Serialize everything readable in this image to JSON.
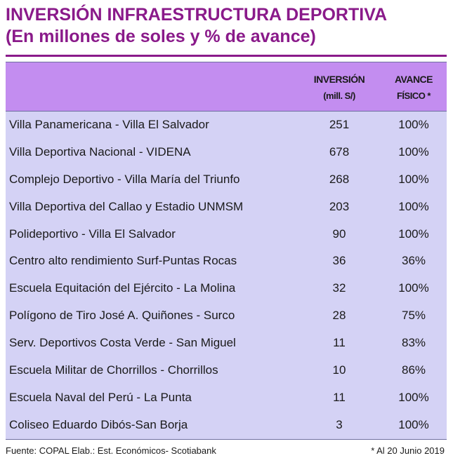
{
  "title": {
    "line1": "INVERSIÓN INFRAESTRUCTURA DEPORTIVA",
    "line2": "(En millones de soles y % de avance)"
  },
  "colors": {
    "title": "#8a1a8a",
    "header_bg": "#c38df0",
    "table_bg": "#d4d2f5"
  },
  "table": {
    "headers": {
      "inversion": "INVERSIÓN",
      "inversion_unit": "(mill. S/)",
      "avance": "AVANCE",
      "avance_sub": "FÍSICO *"
    },
    "rows": [
      {
        "name": "Villa Panamericana - Villa El Salvador",
        "inversion": "251",
        "avance": "100%"
      },
      {
        "name": "Villa Deportiva Nacional - VIDENA",
        "inversion": "678",
        "avance": "100%"
      },
      {
        "name": "Complejo Deportivo - Villa María del Triunfo",
        "inversion": "268",
        "avance": "100%"
      },
      {
        "name": "Villa Deportiva del Callao y Estadio UNMSM",
        "inversion": "203",
        "avance": "100%"
      },
      {
        "name": "Polideportivo - Villa El Salvador",
        "inversion": "90",
        "avance": "100%"
      },
      {
        "name": "Centro alto rendimiento Surf-Puntas Rocas",
        "inversion": "36",
        "avance": "36%"
      },
      {
        "name": "Escuela Equitación del Ejército - La Molina",
        "inversion": "32",
        "avance": "100%"
      },
      {
        "name": "Polígono de Tiro José A. Quiñones - Surco",
        "inversion": "28",
        "avance": "75%"
      },
      {
        "name": "Serv. Deportivos Costa Verde - San Miguel",
        "inversion": "11",
        "avance": "83%"
      },
      {
        "name": "Escuela Militar de Chorrillos - Chorrillos",
        "inversion": "10",
        "avance": "86%"
      },
      {
        "name": "Escuela Naval del Perú - La Punta",
        "inversion": "11",
        "avance": "100%"
      },
      {
        "name": "Coliseo Eduardo Dibós-San Borja",
        "inversion": "3",
        "avance": "100%"
      }
    ]
  },
  "footer": {
    "source": "Fuente: COPAL  Elab.: Est. Económicos- Scotiabank",
    "note": "* Al 20 Junio 2019"
  }
}
